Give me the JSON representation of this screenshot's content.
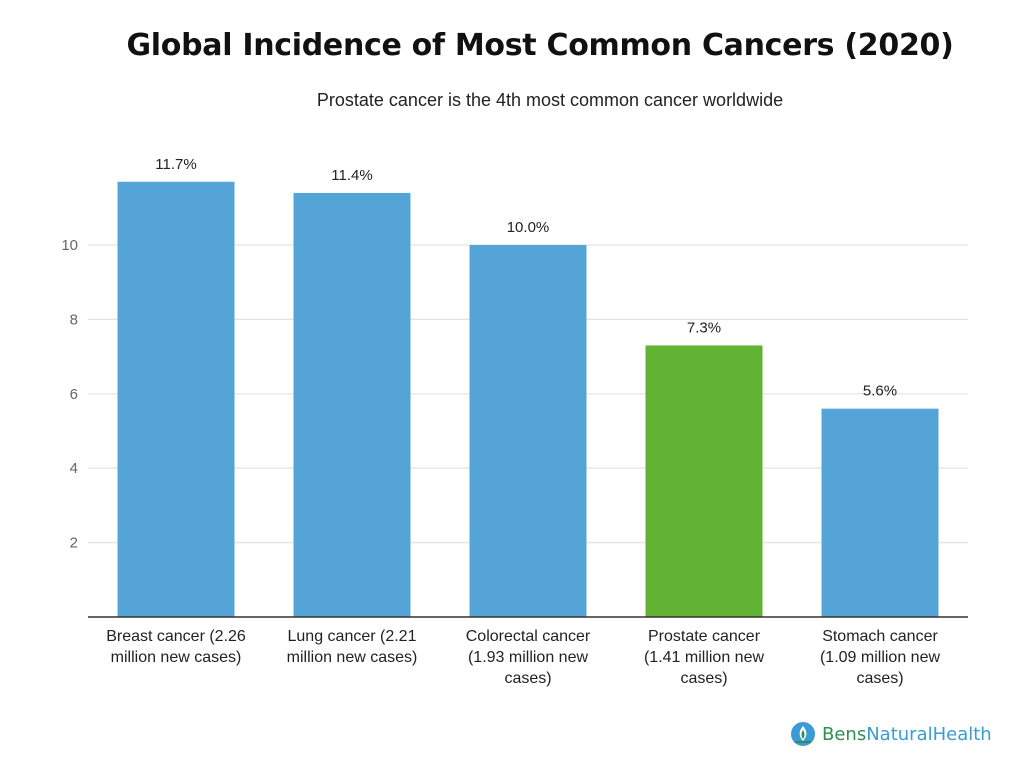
{
  "chart_data": {
    "type": "bar",
    "title": "Global Incidence of Most Common Cancers (2020)",
    "subtitle": "Prostate cancer is the 4th most common cancer worldwide",
    "categories": [
      "Breast cancer (2.26 million new cases)",
      "Lung cancer (2.21 million new cases)",
      "Colorectal cancer (1.93 million new cases)",
      "Prostate cancer (1.41 million new cases)",
      "Stomach cancer (1.09 million new cases)"
    ],
    "category_label_lines": [
      [
        "Breast cancer (2.26",
        "million new cases)"
      ],
      [
        "Lung cancer (2.21",
        "million new cases)"
      ],
      [
        "Colorectal cancer",
        "(1.93 million new",
        "cases)"
      ],
      [
        "Prostate cancer",
        "(1.41 million new",
        "cases)"
      ],
      [
        "Stomach cancer",
        "(1.09 million new",
        "cases)"
      ]
    ],
    "values": [
      11.7,
      11.4,
      10.0,
      7.3,
      5.6
    ],
    "data_labels": [
      "11.7%",
      "11.4%",
      "10.0%",
      "7.3%",
      "5.6%"
    ],
    "bar_colors": [
      "#54a4d8",
      "#54a4d8",
      "#54a4d8",
      "#62b233",
      "#54a4d8"
    ],
    "yticks": [
      2,
      4,
      6,
      8,
      10
    ],
    "ylim": [
      0,
      12
    ],
    "grid": true,
    "xlabel": "",
    "ylabel": ""
  },
  "branding": {
    "part1": "Bens",
    "part2": "NaturalHealth",
    "icon": "leaf-drop-icon"
  },
  "colors": {
    "bar_default": "#54a4d8",
    "bar_highlight": "#62b233",
    "brand_green": "#2f8f4e",
    "brand_blue": "#3a9bd5"
  }
}
